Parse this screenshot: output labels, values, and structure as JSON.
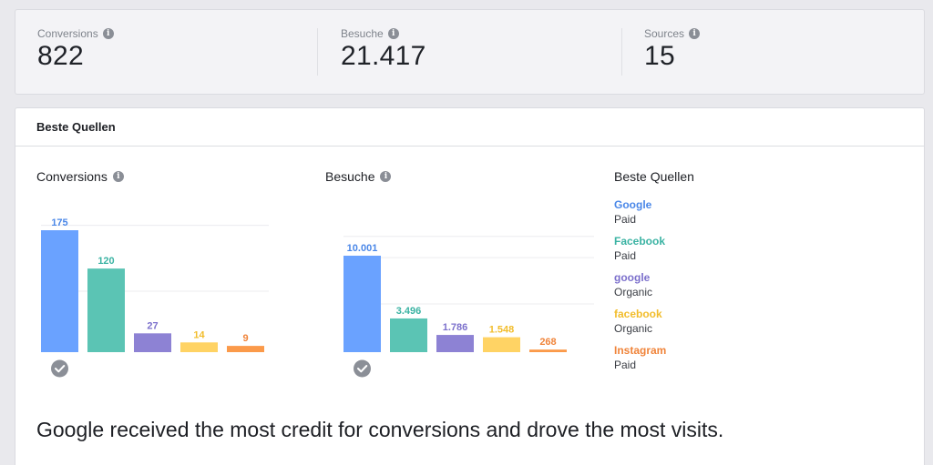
{
  "colors": {
    "google_paid": "#6aa2ff",
    "facebook_paid": "#5bc4b4",
    "google_organic": "#8d82d4",
    "facebook_organic": "#ffd364",
    "instagram_paid": "#fb9a4a"
  },
  "stats": [
    {
      "label": "Conversions",
      "value": "822",
      "icon": "info-icon"
    },
    {
      "label": "Besuche",
      "value": "21.417",
      "icon": "info-icon"
    },
    {
      "label": "Sources",
      "value": "15",
      "icon": "info-icon"
    }
  ],
  "panel": {
    "title": "Beste Quellen"
  },
  "charts": {
    "conversions_title": "Conversions",
    "visits_title": "Besuche",
    "best_icon": "check-badge-icon"
  },
  "chart_data": [
    {
      "type": "bar",
      "title": "Conversions",
      "categories": [
        "Google Paid",
        "Facebook Paid",
        "google Organic",
        "facebook Organic",
        "Instagram Paid"
      ],
      "values": [
        175,
        120,
        27,
        14,
        9
      ],
      "labels": [
        "175",
        "120",
        "27",
        "14",
        "9"
      ],
      "ylim": [
        0,
        175
      ],
      "grid": true
    },
    {
      "type": "bar",
      "title": "Besuche",
      "categories": [
        "Google Paid",
        "Facebook Paid",
        "google Organic",
        "facebook Organic",
        "Instagram Paid"
      ],
      "values": [
        10001,
        3496,
        1786,
        1548,
        268
      ],
      "labels": [
        "10.001",
        "3.496",
        "1.786",
        "1.548",
        "268"
      ],
      "ylim": [
        0,
        10001
      ],
      "grid": true
    }
  ],
  "legend": {
    "title": "Beste Quellen",
    "items": [
      {
        "name": "Google",
        "type": "Paid",
        "color": "#4a87e8"
      },
      {
        "name": "Facebook",
        "type": "Paid",
        "color": "#3bb3a3"
      },
      {
        "name": "google",
        "type": "Organic",
        "color": "#7c70cc"
      },
      {
        "name": "facebook",
        "type": "Organic",
        "color": "#f2bd2c"
      },
      {
        "name": "Instagram",
        "type": "Paid",
        "color": "#f0843a"
      }
    ]
  },
  "summary": "Google received the most credit for conversions and drove the most visits."
}
